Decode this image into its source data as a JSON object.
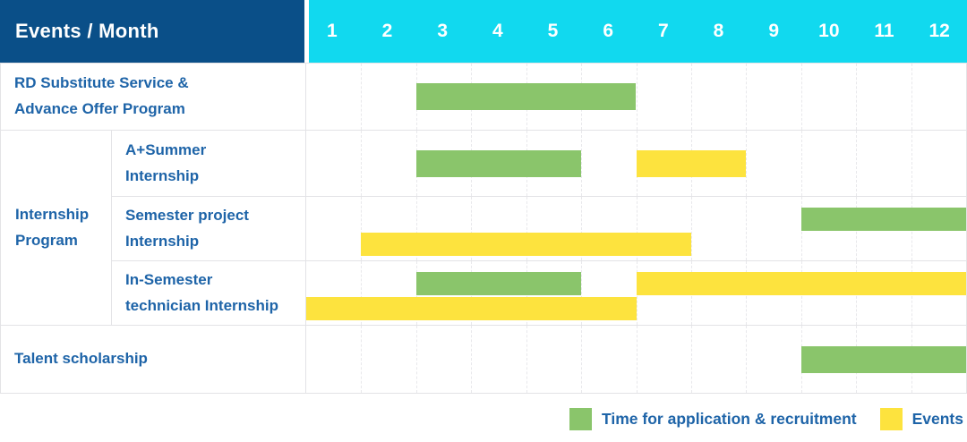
{
  "colors": {
    "header_bg": "#0A4F88",
    "months_bg": "#11D9EF",
    "application_green": "#8AC56B",
    "event_yellow": "#FDE33E",
    "label_blue": "#1E64A8",
    "grid_solid": "#E3E3E6",
    "grid_dashed": "#E8E8EB"
  },
  "chart_data": {
    "type": "bar",
    "subtype": "gantt-schedule-table",
    "title": "Events / Month",
    "xlabel": "Month",
    "x_ticks": [
      "1",
      "2",
      "3",
      "4",
      "5",
      "6",
      "7",
      "8",
      "9",
      "10",
      "11",
      "12"
    ],
    "x_range": [
      1,
      12
    ],
    "grid": true,
    "legend_position": "bottom-right",
    "legend": [
      {
        "kind": "application",
        "label": "Time for application & recruitment"
      },
      {
        "kind": "event",
        "label": "Events"
      }
    ],
    "groups": [
      {
        "id": "internship",
        "label": "Internship\nProgram",
        "row_start": 1,
        "row_end": 3
      }
    ],
    "rows": [
      {
        "group": null,
        "label": "RD Substitute Service &\nAdvance Offer Program",
        "lanes": [
          [
            {
              "kind": "application",
              "start_month": 3,
              "end_month": 6
            }
          ]
        ]
      },
      {
        "group": "internship",
        "label": "A+Summer\nInternship",
        "lanes": [
          [
            {
              "kind": "application",
              "start_month": 3,
              "end_month": 5
            },
            {
              "kind": "event",
              "start_month": 7,
              "end_month": 8
            }
          ]
        ]
      },
      {
        "group": "internship",
        "label": "Semester project\nInternship",
        "lanes": [
          [
            {
              "kind": "application",
              "start_month": 10,
              "end_month": 12
            }
          ],
          [
            {
              "kind": "event",
              "start_month": 2,
              "end_month": 7
            }
          ]
        ]
      },
      {
        "group": "internship",
        "label": "In-Semester\ntechnician Internship",
        "lanes": [
          [
            {
              "kind": "application",
              "start_month": 3,
              "end_month": 5
            },
            {
              "kind": "event",
              "start_month": 7,
              "end_month": 12
            }
          ],
          [
            {
              "kind": "event",
              "start_month": 1,
              "end_month": 6
            }
          ]
        ]
      },
      {
        "group": null,
        "label": "Talent scholarship",
        "lanes": [
          [
            {
              "kind": "application",
              "start_month": 10,
              "end_month": 12
            }
          ]
        ]
      }
    ]
  }
}
